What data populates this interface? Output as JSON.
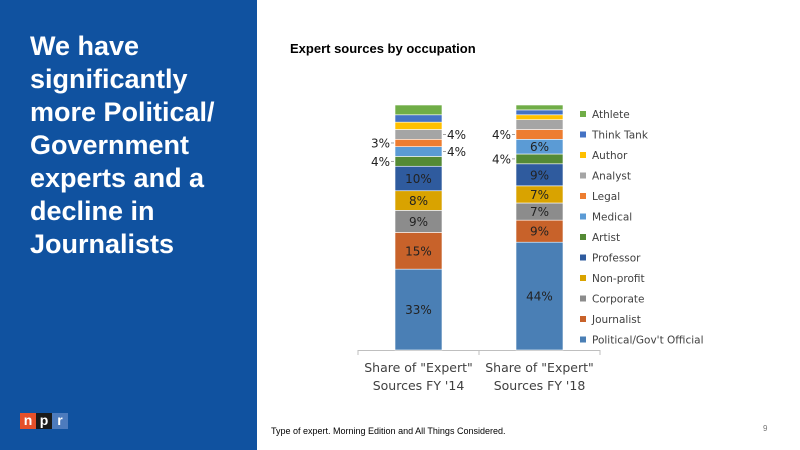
{
  "headline": "We have significantly more Political/ Government experts and a decline in Journalists",
  "logo": {
    "letters": [
      "n",
      "p",
      "r"
    ],
    "colors": [
      "#e5502a",
      "#1a1a1a",
      "#4d7bbd"
    ]
  },
  "footnote": "Type of expert. Morning Edition and All Things Considered.",
  "page_number": "9",
  "chart_data": {
    "type": "bar",
    "stacked": true,
    "title": "Expert sources by occupation",
    "categories": [
      "Share of \"Expert\" Sources FY '14",
      "Share of \"Expert\" Sources FY '18"
    ],
    "category_lines": [
      [
        "Share of \"Expert\"",
        "Sources FY '14"
      ],
      [
        "Share of \"Expert\"",
        "Sources FY '18"
      ]
    ],
    "ylim": [
      0,
      100
    ],
    "legend_position": "right",
    "series": [
      {
        "name": "Political/Gov't Official",
        "color": "#4a7fb5",
        "values": [
          33,
          44
        ],
        "labels": [
          "33%",
          "44%"
        ]
      },
      {
        "name": "Journalist",
        "color": "#c8622a",
        "values": [
          15,
          9
        ],
        "labels": [
          "15%",
          "9%"
        ]
      },
      {
        "name": "Corporate",
        "color": "#8c8c8c",
        "values": [
          9,
          7
        ],
        "labels": [
          "9%",
          "7%"
        ]
      },
      {
        "name": "Non-profit",
        "color": "#d9a300",
        "values": [
          8,
          7
        ],
        "labels": [
          "8%",
          "7%"
        ]
      },
      {
        "name": "Professor",
        "color": "#2f5b9e",
        "values": [
          10,
          9
        ],
        "labels": [
          "10%",
          "9%"
        ]
      },
      {
        "name": "Artist",
        "color": "#548a35",
        "values": [
          4,
          4
        ],
        "labels": [
          "4%",
          "4%"
        ]
      },
      {
        "name": "Medical",
        "color": "#5b9bd5",
        "values": [
          4,
          6
        ],
        "labels": [
          "4%",
          "6%"
        ]
      },
      {
        "name": "Legal",
        "color": "#ed7d31",
        "values": [
          3,
          4
        ],
        "labels": [
          "3%",
          "4%"
        ]
      },
      {
        "name": "Analyst",
        "color": "#a5a5a5",
        "values": [
          4,
          4
        ],
        "labels": [
          "4%",
          ""
        ]
      },
      {
        "name": "Author",
        "color": "#ffc000",
        "values": [
          3,
          2
        ],
        "labels": [
          "",
          ""
        ]
      },
      {
        "name": "Think Tank",
        "color": "#4472c4",
        "values": [
          3,
          2
        ],
        "labels": [
          "",
          ""
        ]
      },
      {
        "name": "Athlete",
        "color": "#70ad47",
        "values": [
          4,
          2
        ],
        "labels": [
          "",
          ""
        ]
      }
    ]
  }
}
